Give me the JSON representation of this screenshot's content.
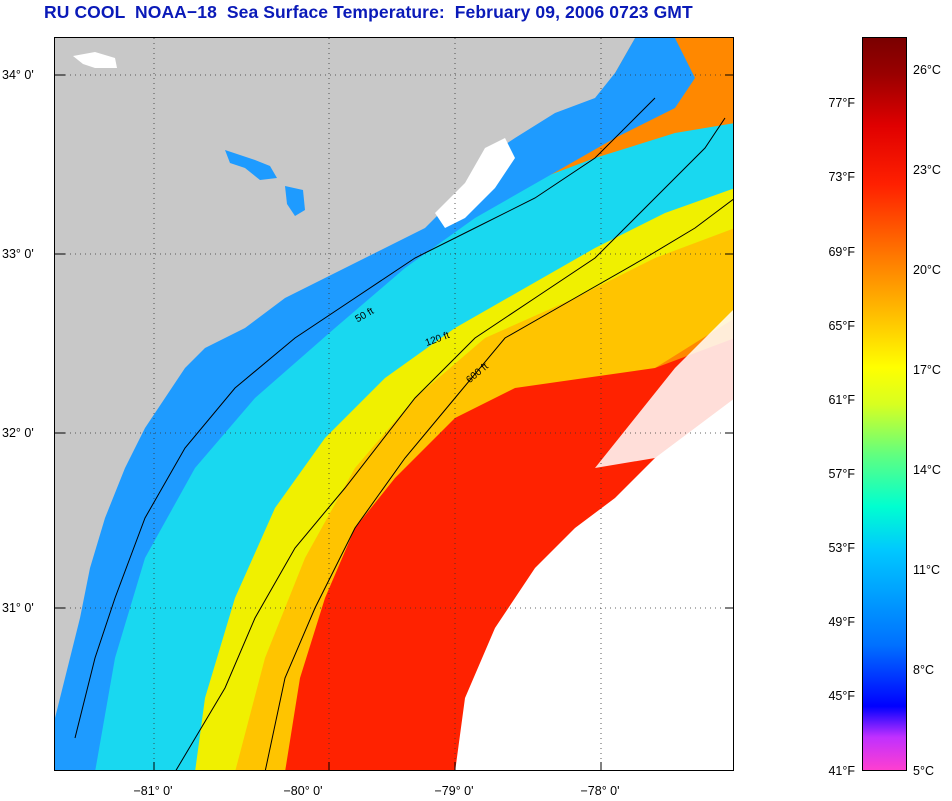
{
  "title": "RU COOL  NOAA−18  Sea Surface Temperature:  February 09, 2006 0723 GMT",
  "colors": {
    "title": "#0a1ab8",
    "land": "#c8c8c8",
    "cold": "#1e9bff",
    "cool": "#19d8f0",
    "mid": "#f5e600",
    "warm": "#ff8000",
    "gulf_stream": "#ff2200",
    "cloud": "#ffffff"
  },
  "map": {
    "latitude_labels": [
      "34° 0'",
      "33° 0'",
      "32° 0'",
      "31° 0'"
    ],
    "longitude_labels": [
      "−81° 0'",
      "−80° 0'",
      "−79° 0'",
      "−78° 0'"
    ],
    "contour_labels": {
      "c50": "50 ft",
      "c120": "120 ft",
      "c600": "600 ft"
    }
  },
  "colorbar": {
    "fahrenheit_labels": [
      "77°F",
      "73°F",
      "69°F",
      "65°F",
      "61°F",
      "57°F",
      "53°F",
      "49°F",
      "45°F",
      "41°F"
    ],
    "celsius_labels": [
      "26°C",
      "23°C",
      "20°C",
      "17°C",
      "14°C",
      "11°C",
      "8°C",
      "5°C"
    ]
  }
}
